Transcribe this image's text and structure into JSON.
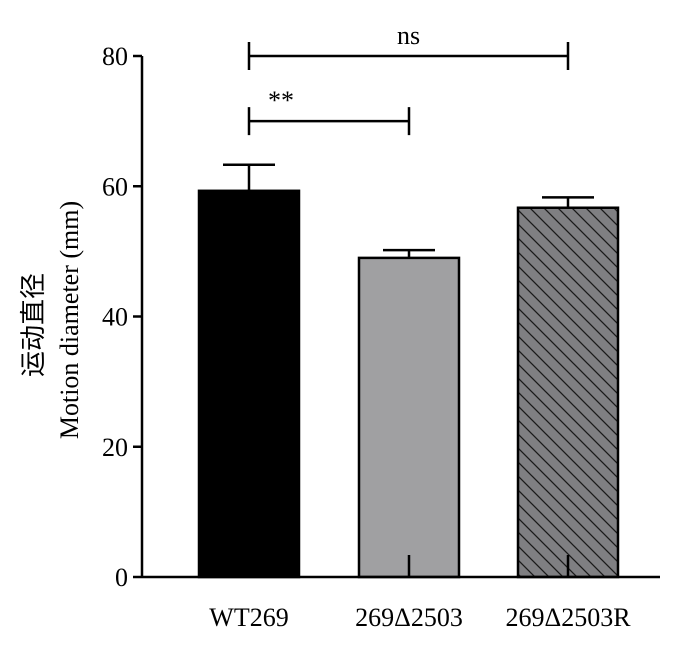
{
  "chart_data": {
    "type": "bar",
    "categories": [
      "WT269",
      "269Δ2503",
      "269Δ2503R"
    ],
    "values": [
      59.3,
      49.0,
      56.7
    ],
    "errors": [
      4.0,
      1.2,
      1.6
    ],
    "fills": [
      "#000000",
      "#a0a0a2",
      "#7f7f82"
    ],
    "patterns": [
      "solid",
      "solid",
      "diagonal-hatch"
    ],
    "ylabel_cn": "运动直径",
    "ylabel": "Motion diameter (mm)",
    "xlabel": "",
    "title": "",
    "ylim": [
      0,
      80
    ],
    "yticks": [
      0,
      20,
      40,
      60,
      80
    ],
    "grid": false,
    "significance": [
      {
        "from": 0,
        "to": 1,
        "label": "**",
        "y": 70
      },
      {
        "from": 0,
        "to": 2,
        "label": "ns",
        "y": 80
      }
    ]
  }
}
